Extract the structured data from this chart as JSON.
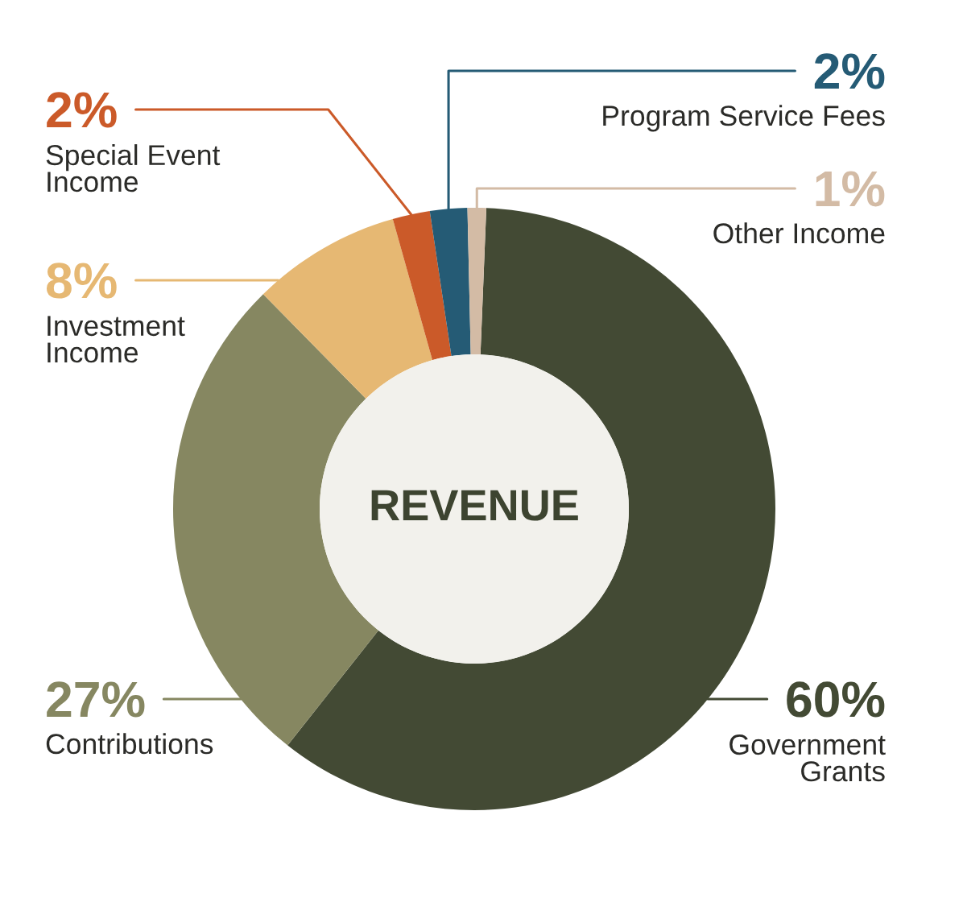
{
  "chart_data": {
    "type": "donut",
    "title": "REVENUE",
    "categories": [
      "Government Grants",
      "Contributions",
      "Investment Income",
      "Special Event Income",
      "Program Service Fees",
      "Other Income"
    ],
    "values": [
      60,
      27,
      8,
      2,
      2,
      1
    ],
    "colors": [
      "#434a34",
      "#868761",
      "#e6b873",
      "#cb5a29",
      "#255b75",
      "#d3bba5"
    ],
    "value_labels": [
      "60%",
      "27%",
      "8%",
      "2%",
      "2%",
      "1%"
    ]
  }
}
